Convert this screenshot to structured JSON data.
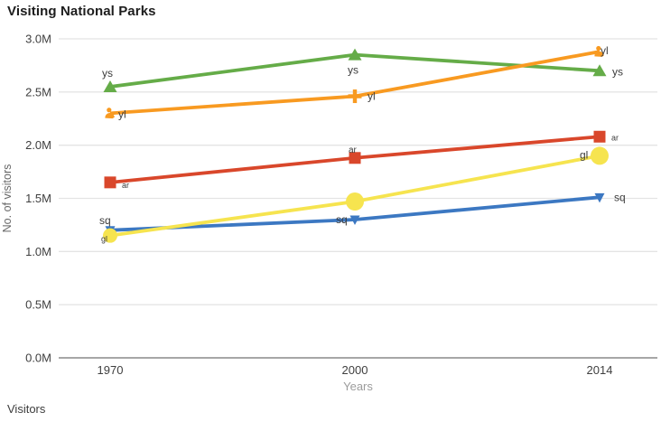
{
  "title": "Visiting National Parks",
  "footer": {
    "label": "Visitors"
  },
  "colors": {
    "grid": "#e4e4e4",
    "zero_axis": "#a6a6a6",
    "tick_text": "#3f3f3f",
    "axis_title": "#666666",
    "x_axis_title": "#9c9c9c",
    "point_label": "#3c3c3c",
    "background": "#ffffff"
  },
  "chart_data": {
    "type": "line",
    "title": "Visiting National Parks",
    "xlabel": "Years",
    "ylabel": "No. of visitors",
    "footer_text": "Visitors",
    "categories": [
      "1970",
      "2000",
      "2014"
    ],
    "y_tick_labels": [
      "0.0M",
      "0.5M",
      "1.0M",
      "1.5M",
      "2.0M",
      "2.5M",
      "3.0M"
    ],
    "y_tick_values_millions": [
      0.0,
      0.5,
      1.0,
      1.5,
      2.0,
      2.5,
      3.0
    ],
    "ylim_millions": [
      0,
      3.0
    ],
    "grid": true,
    "legend_position": "none-inline-point-labels",
    "series": [
      {
        "name": "ys",
        "color": "#65AC48",
        "values_millions": [
          2.55,
          2.85,
          2.7
        ],
        "markers": [
          "triangle-up",
          "triangle-up",
          "triangle-up"
        ],
        "point_labels": [
          {
            "i": 0,
            "text": "ys",
            "dx": -9,
            "dy": -15,
            "size": 12
          },
          {
            "i": 1,
            "text": "ys",
            "dx": -8,
            "dy": 17,
            "size": 12
          },
          {
            "i": 2,
            "text": "ys",
            "dx": 14,
            "dy": 1,
            "size": 12
          }
        ]
      },
      {
        "name": "yl",
        "color": "#F89A21",
        "values_millions": [
          2.3,
          2.46,
          2.88
        ],
        "markers": [
          "person",
          "plus",
          "person"
        ],
        "point_labels": [
          {
            "i": 0,
            "text": "yl",
            "dx": 9,
            "dy": 1,
            "size": 12
          },
          {
            "i": 1,
            "text": "yl",
            "dx": 14,
            "dy": 0,
            "size": 12
          },
          {
            "i": 2,
            "text": "yl",
            "dx": 1,
            "dy": -1,
            "size": 12
          }
        ]
      },
      {
        "name": "ar",
        "color": "#D9472B",
        "values_millions": [
          1.65,
          1.88,
          2.08
        ],
        "markers": [
          "square",
          "square",
          "square"
        ],
        "point_labels": [
          {
            "i": 0,
            "text": "ar",
            "dx": 13,
            "dy": 2,
            "size": 9
          },
          {
            "i": 1,
            "text": "ar",
            "dx": -7,
            "dy": -10,
            "size": 10
          },
          {
            "i": 2,
            "text": "ar",
            "dx": 13,
            "dy": 0,
            "size": 9
          }
        ]
      },
      {
        "name": "sq",
        "color": "#3C78C2",
        "values_millions": [
          1.2,
          1.3,
          1.51
        ],
        "markers": [
          "triangle-down",
          "triangle-down",
          "triangle-down"
        ],
        "point_labels": [
          {
            "i": 0,
            "text": "sq",
            "dx": -12,
            "dy": -11,
            "size": 12
          },
          {
            "i": 1,
            "text": "sq",
            "dx": -21,
            "dy": 0,
            "size": 12
          },
          {
            "i": 2,
            "text": "sq",
            "dx": 16,
            "dy": 0,
            "size": 12
          }
        ]
      },
      {
        "name": "gl",
        "color": "#F6E44F",
        "values_millions": [
          1.15,
          1.47,
          1.9
        ],
        "markers": [
          "circle",
          "circle",
          "circle"
        ],
        "marker_radii": [
          8,
          10,
          10
        ],
        "point_labels": [
          {
            "i": 0,
            "text": "gl",
            "dx": -10,
            "dy": 3,
            "size": 9
          },
          {
            "i": 2,
            "text": "gl",
            "dx": -22,
            "dy": -1,
            "size": 12
          }
        ]
      }
    ]
  }
}
